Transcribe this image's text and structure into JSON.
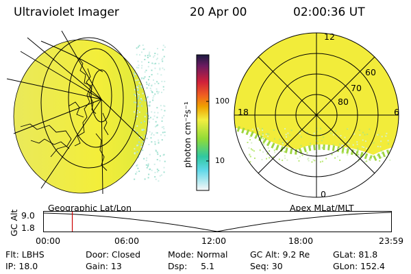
{
  "header": {
    "title": "Ultraviolet Imager",
    "date": "20 Apr 00",
    "time": "02:00:36 UT"
  },
  "colorbar": {
    "label": "photon cm⁻²s⁻¹",
    "ticks": [
      "100",
      "10"
    ],
    "scale": "log"
  },
  "polar": {
    "mlt_labels": [
      "12",
      "18",
      "6",
      "0"
    ],
    "mlat_labels": [
      "60",
      "70",
      "80"
    ]
  },
  "timeline": {
    "left_title": "Geographic Lat/Lon",
    "right_title": "Apex MLat/MLT",
    "ylabel": "GC Alt",
    "ymax": "9.0",
    "ymin": "1.8",
    "xticks": [
      "00:00",
      "06:00",
      "12:00",
      "18:00",
      "23:59"
    ],
    "cursor_hour": 2.01
  },
  "info": {
    "row1": [
      "Flt: LBHS",
      "Door: Closed",
      "Mode: Normal",
      "GC Alt: 9.2 Re",
      "GLat:  81.8"
    ],
    "row2": [
      "IP: 18.0",
      "Gain: 13",
      "Dsp:     5.1",
      "Seq: 30",
      "GLon: 152.4"
    ]
  },
  "colors": {
    "accent": "#cc0000",
    "auroral_fill": "#f4ee3c",
    "auroral_edge": "#9fd640"
  }
}
